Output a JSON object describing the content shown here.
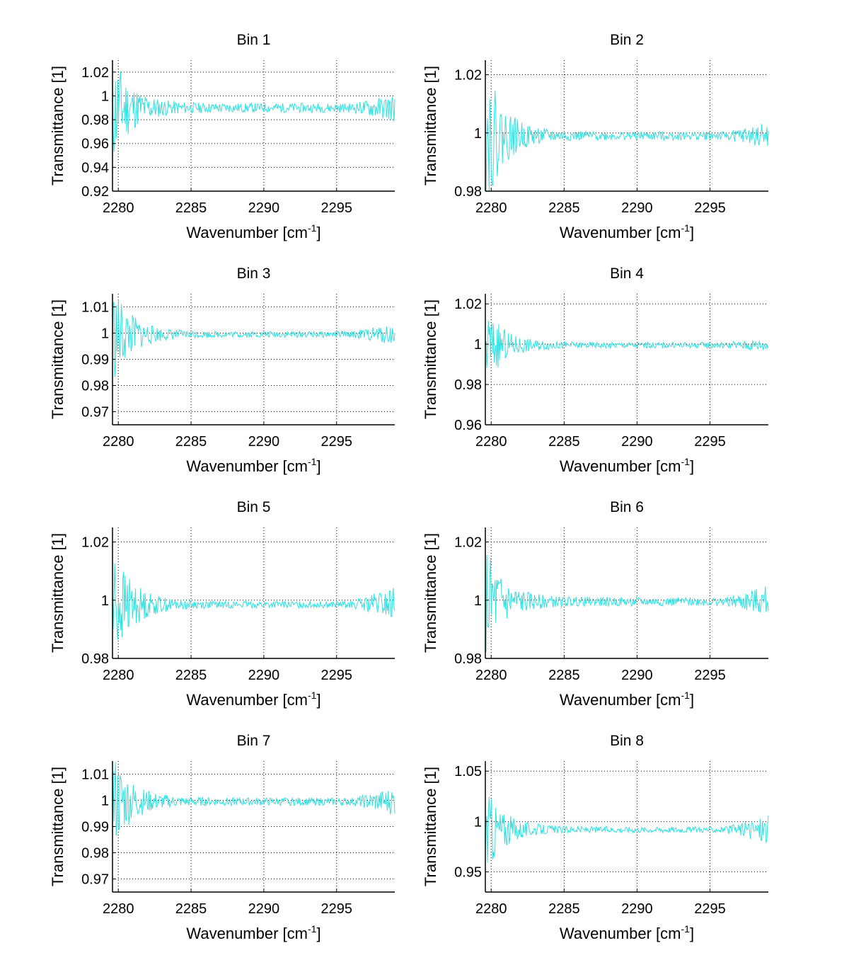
{
  "chart_data": [
    {
      "type": "line",
      "title": "Bin 1",
      "xlabel": "Wavenumber [cm^-1]",
      "ylabel": "Transmittance [1]",
      "xlim": [
        2279.6,
        2299
      ],
      "ylim": [
        0.92,
        1.03
      ],
      "xticks": [
        2280,
        2285,
        2290,
        2295
      ],
      "xtick_labels": [
        "2280",
        "2285",
        "2290",
        "2295"
      ],
      "yticks": [
        0.92,
        0.94,
        0.96,
        0.98,
        1,
        1.02
      ],
      "ytick_labels": [
        "0.92",
        "0.94",
        "0.96",
        "0.98",
        "1",
        "1.02"
      ],
      "grid": true,
      "color": "#33e0e0",
      "series": [
        {
          "name": "Bin 1",
          "baseline": 0.99,
          "noise_start": 0.05,
          "noise_end": 0.004,
          "tail_noise": 0.008,
          "seed": 11
        }
      ]
    },
    {
      "type": "line",
      "title": "Bin 2",
      "xlabel": "Wavenumber [cm^-1]",
      "ylabel": "Transmittance [1]",
      "xlim": [
        2279.6,
        2299
      ],
      "ylim": [
        0.98,
        1.025
      ],
      "xticks": [
        2280,
        2285,
        2290,
        2295
      ],
      "xtick_labels": [
        "2280",
        "2285",
        "2290",
        "2295"
      ],
      "yticks": [
        0.98,
        1,
        1.02
      ],
      "ytick_labels": [
        "0.98",
        "1",
        "1.02"
      ],
      "grid": true,
      "color": "#33e0e0",
      "series": [
        {
          "name": "Bin 2",
          "baseline": 0.999,
          "noise_start": 0.025,
          "noise_end": 0.0015,
          "tail_noise": 0.003,
          "seed": 22
        }
      ]
    },
    {
      "type": "line",
      "title": "Bin 3",
      "xlabel": "Wavenumber [cm^-1]",
      "ylabel": "Transmittance [1]",
      "xlim": [
        2279.6,
        2299
      ],
      "ylim": [
        0.965,
        1.015
      ],
      "xticks": [
        2280,
        2285,
        2290,
        2295
      ],
      "xtick_labels": [
        "2280",
        "2285",
        "2290",
        "2295"
      ],
      "yticks": [
        0.97,
        0.98,
        0.99,
        1,
        1.01
      ],
      "ytick_labels": [
        "0.97",
        "0.98",
        "0.99",
        "1",
        "1.01"
      ],
      "grid": true,
      "color": "#33e0e0",
      "series": [
        {
          "name": "Bin 3",
          "baseline": 0.9995,
          "noise_start": 0.02,
          "noise_end": 0.0012,
          "tail_noise": 0.003,
          "seed": 33
        }
      ]
    },
    {
      "type": "line",
      "title": "Bin 4",
      "xlabel": "Wavenumber [cm^-1]",
      "ylabel": "Transmittance [1]",
      "xlim": [
        2279.6,
        2299
      ],
      "ylim": [
        0.96,
        1.025
      ],
      "xticks": [
        2280,
        2285,
        2290,
        2295
      ],
      "xtick_labels": [
        "2280",
        "2285",
        "2290",
        "2295"
      ],
      "yticks": [
        0.96,
        0.98,
        1,
        1.02
      ],
      "ytick_labels": [
        "0.96",
        "0.98",
        "1",
        "1.02"
      ],
      "grid": true,
      "color": "#33e0e0",
      "series": [
        {
          "name": "Bin 4",
          "baseline": 0.9995,
          "noise_start": 0.02,
          "noise_end": 0.0015,
          "tail_noise": 0.002,
          "seed": 44
        }
      ]
    },
    {
      "type": "line",
      "title": "Bin 5",
      "xlabel": "Wavenumber [cm^-1]",
      "ylabel": "Transmittance [1]",
      "xlim": [
        2279.6,
        2299
      ],
      "ylim": [
        0.98,
        1.025
      ],
      "xticks": [
        2280,
        2285,
        2290,
        2295
      ],
      "xtick_labels": [
        "2280",
        "2285",
        "2290",
        "2295"
      ],
      "yticks": [
        0.98,
        1,
        1.02
      ],
      "ytick_labels": [
        "0.98",
        "1",
        "1.02"
      ],
      "grid": true,
      "color": "#33e0e0",
      "series": [
        {
          "name": "Bin 5",
          "baseline": 0.9985,
          "noise_start": 0.022,
          "noise_end": 0.0012,
          "tail_noise": 0.005,
          "seed": 55
        }
      ]
    },
    {
      "type": "line",
      "title": "Bin 6",
      "xlabel": "Wavenumber [cm^-1]",
      "ylabel": "Transmittance [1]",
      "xlim": [
        2279.6,
        2299
      ],
      "ylim": [
        0.98,
        1.025
      ],
      "xticks": [
        2280,
        2285,
        2290,
        2295
      ],
      "xtick_labels": [
        "2280",
        "2285",
        "2290",
        "2295"
      ],
      "yticks": [
        0.98,
        1,
        1.02
      ],
      "ytick_labels": [
        "0.98",
        "1",
        "1.02"
      ],
      "grid": true,
      "color": "#33e0e0",
      "series": [
        {
          "name": "Bin 6",
          "baseline": 0.9995,
          "noise_start": 0.02,
          "noise_end": 0.0015,
          "tail_noise": 0.004,
          "seed": 66
        }
      ]
    },
    {
      "type": "line",
      "title": "Bin 7",
      "xlabel": "Wavenumber [cm^-1]",
      "ylabel": "Transmittance [1]",
      "xlim": [
        2279.6,
        2299
      ],
      "ylim": [
        0.965,
        1.015
      ],
      "xticks": [
        2280,
        2285,
        2290,
        2295
      ],
      "xtick_labels": [
        "2280",
        "2285",
        "2290",
        "2295"
      ],
      "yticks": [
        0.97,
        0.98,
        0.99,
        1,
        1.01
      ],
      "ytick_labels": [
        "0.97",
        "0.98",
        "0.99",
        "1",
        "1.01"
      ],
      "grid": true,
      "color": "#33e0e0",
      "series": [
        {
          "name": "Bin 7",
          "baseline": 0.9995,
          "noise_start": 0.02,
          "noise_end": 0.0015,
          "tail_noise": 0.004,
          "seed": 77
        }
      ]
    },
    {
      "type": "line",
      "title": "Bin 8",
      "xlabel": "Wavenumber [cm^-1]",
      "ylabel": "Transmittance [1]",
      "xlim": [
        2279.6,
        2299
      ],
      "ylim": [
        0.93,
        1.06
      ],
      "xticks": [
        2280,
        2285,
        2290,
        2295
      ],
      "xtick_labels": [
        "2280",
        "2285",
        "2290",
        "2295"
      ],
      "yticks": [
        0.95,
        1,
        1.05
      ],
      "ytick_labels": [
        "0.95",
        "1",
        "1.05"
      ],
      "grid": true,
      "color": "#33e0e0",
      "series": [
        {
          "name": "Bin 8",
          "baseline": 0.992,
          "noise_start": 0.045,
          "noise_end": 0.003,
          "tail_noise": 0.012,
          "seed": 88
        }
      ]
    }
  ]
}
